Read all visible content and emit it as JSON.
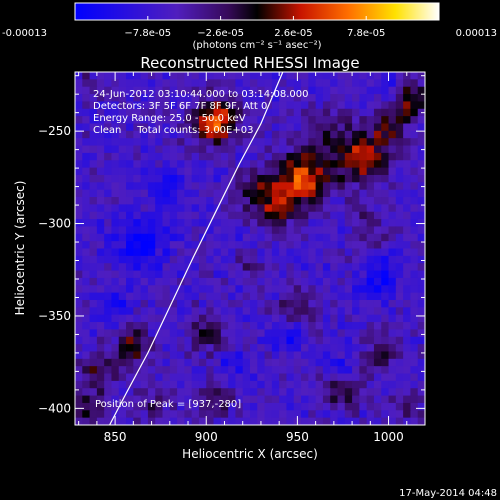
{
  "chart_data": {
    "type": "heatmap",
    "title": "Reconstructed RHESSI Image",
    "xlabel": "Heliocentric X (arcsec)",
    "ylabel": "Heliocentric Y (arcsec)",
    "xlim": [
      828,
      1020
    ],
    "ylim": [
      -409,
      -218
    ],
    "x_ticks": [
      850,
      900,
      950,
      1000
    ],
    "y_ticks": [
      -250,
      -300,
      -350,
      -400
    ],
    "colorbar": {
      "range": [
        -0.00013,
        0.00013
      ],
      "tick_values": [
        -0.00013,
        -7.8e-05,
        -2.6e-05,
        2.6e-05,
        7.8e-05,
        0.00013
      ],
      "tick_labels": [
        "-0.00013",
        "−7.8e-05",
        "−2.6e-05",
        "2.6e-05",
        "7.8e-05",
        "0.00013"
      ],
      "units_label": "(photons cm⁻² s⁻¹ asec⁻²)",
      "colormap": "blue-purple-red-yellow-white"
    },
    "annotations": [
      "24-Jun-2012 03:10:44.000 to 03:14:08.000",
      "Detectors: 3F 5F 6F 7F 8F 9F, Att 0",
      "Energy Range: 25.0 - 50.0 keV",
      "Clean     Total counts: 3.00E+03"
    ],
    "peak_label": "Position of Peak = [937,-280]",
    "peak_position": [
      937,
      -280
    ],
    "limb_curve": [
      [
        847,
        -409
      ],
      [
        856,
        -392
      ],
      [
        868,
        -370
      ],
      [
        880,
        -345
      ],
      [
        893,
        -318
      ],
      [
        906,
        -292
      ],
      [
        918,
        -268
      ],
      [
        930,
        -246
      ],
      [
        942,
        -218
      ]
    ],
    "sources": [
      {
        "x": 905,
        "y": -245,
        "amp": 0.00011,
        "sigma": 9
      },
      {
        "x": 953,
        "y": -275,
        "amp": 0.00012,
        "sigma": 10
      },
      {
        "x": 938,
        "y": -290,
        "amp": 8.5e-05,
        "sigma": 8
      },
      {
        "x": 925,
        "y": -280,
        "amp": 5e-05,
        "sigma": 7
      },
      {
        "x": 985,
        "y": -265,
        "amp": 0.0001,
        "sigma": 10
      },
      {
        "x": 1000,
        "y": -248,
        "amp": 6e-05,
        "sigma": 7
      },
      {
        "x": 1012,
        "y": -233,
        "amp": 7e-05,
        "sigma": 8
      },
      {
        "x": 965,
        "y": -248,
        "amp": 4e-05,
        "sigma": 8
      },
      {
        "x": 990,
        "y": -300,
        "amp": 3.5e-05,
        "sigma": 8
      },
      {
        "x": 860,
        "y": -367,
        "amp": 7e-05,
        "sigma": 7
      },
      {
        "x": 840,
        "y": -380,
        "amp": 5e-05,
        "sigma": 7
      },
      {
        "x": 835,
        "y": -400,
        "amp": 6e-05,
        "sigma": 7
      },
      {
        "x": 900,
        "y": -360,
        "amp": 5.5e-05,
        "sigma": 7
      },
      {
        "x": 905,
        "y": -395,
        "amp": 4.5e-05,
        "sigma": 7
      },
      {
        "x": 950,
        "y": -345,
        "amp": 5e-05,
        "sigma": 7
      },
      {
        "x": 975,
        "y": -390,
        "amp": 6e-05,
        "sigma": 8
      },
      {
        "x": 998,
        "y": -370,
        "amp": 5.5e-05,
        "sigma": 7
      },
      {
        "x": 1010,
        "y": -400,
        "amp": 4e-05,
        "sigma": 6
      },
      {
        "x": 835,
        "y": -225,
        "amp": 3e-05,
        "sigma": 6
      },
      {
        "x": 870,
        "y": -400,
        "amp": 4e-05,
        "sigma": 6
      },
      {
        "x": 925,
        "y": -325,
        "amp": 2.5e-05,
        "sigma": 6
      },
      {
        "x": 865,
        "y": -310,
        "amp": -6e-05,
        "sigma": 9
      },
      {
        "x": 880,
        "y": -282,
        "amp": -4.5e-05,
        "sigma": 7
      },
      {
        "x": 995,
        "y": -330,
        "amp": -5.5e-05,
        "sigma": 7
      },
      {
        "x": 975,
        "y": -380,
        "amp": -4e-05,
        "sigma": 6
      },
      {
        "x": 945,
        "y": -360,
        "amp": -3.5e-05,
        "sigma": 6
      },
      {
        "x": 848,
        "y": -345,
        "amp": -4e-05,
        "sigma": 6
      },
      {
        "x": 1000,
        "y": -225,
        "amp": -3e-05,
        "sigma": 6
      },
      {
        "x": 915,
        "y": -378,
        "amp": -3e-05,
        "sigma": 6
      }
    ],
    "grid": false,
    "legend": "none"
  },
  "footer": {
    "timestamp": "17-May-2014 04:48"
  }
}
